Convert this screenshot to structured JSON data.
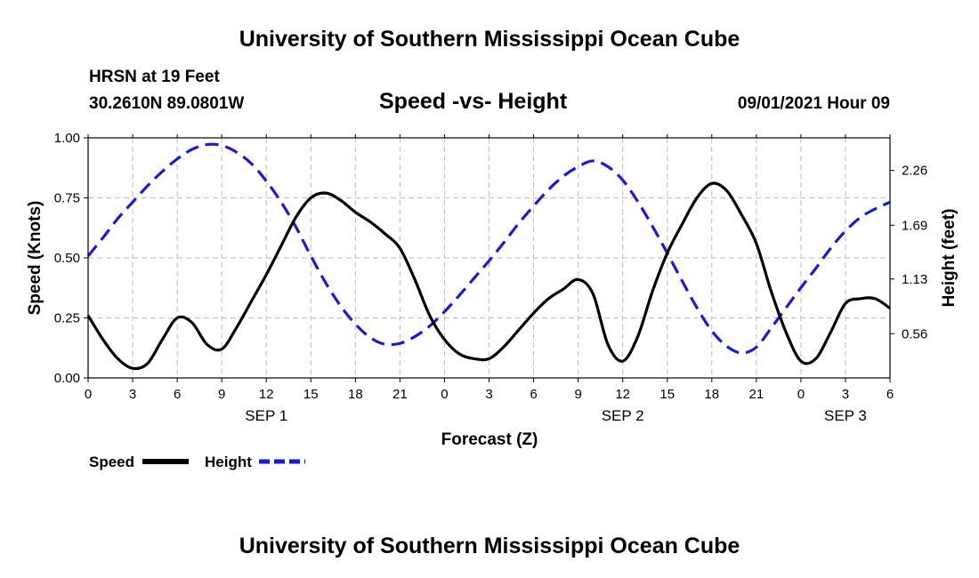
{
  "page": {
    "top_title": "University of Southern Mississippi Ocean Cube",
    "bottom_title": "University of Southern Mississippi Ocean Cube",
    "station": "HRSN at 19 Feet",
    "coords": "30.2610N  89.0801W",
    "datetime": "09/01/2021 Hour 09"
  },
  "chart_data": {
    "type": "line",
    "title": "Speed -vs- Height",
    "xlabel": "Forecast (Z)",
    "ylabel": "Speed (Knots)",
    "y2label": "Height (feet)",
    "x_range_hours": [
      0,
      54
    ],
    "x_ticks": [
      {
        "hour": 0,
        "label": "0"
      },
      {
        "hour": 3,
        "label": "3"
      },
      {
        "hour": 6,
        "label": "6"
      },
      {
        "hour": 9,
        "label": "9"
      },
      {
        "hour": 12,
        "label": "12"
      },
      {
        "hour": 15,
        "label": "15"
      },
      {
        "hour": 18,
        "label": "18"
      },
      {
        "hour": 21,
        "label": "21"
      },
      {
        "hour": 24,
        "label": "0"
      },
      {
        "hour": 27,
        "label": "3"
      },
      {
        "hour": 30,
        "label": "6"
      },
      {
        "hour": 33,
        "label": "9"
      },
      {
        "hour": 36,
        "label": "12"
      },
      {
        "hour": 39,
        "label": "15"
      },
      {
        "hour": 42,
        "label": "18"
      },
      {
        "hour": 45,
        "label": "21"
      },
      {
        "hour": 48,
        "label": "0"
      },
      {
        "hour": 51,
        "label": "3"
      },
      {
        "hour": 54,
        "label": "6"
      }
    ],
    "day_labels": [
      {
        "hour": 12,
        "label": "SEP 1"
      },
      {
        "hour": 36,
        "label": "SEP 2"
      },
      {
        "hour": 51,
        "label": "SEP 3"
      }
    ],
    "ylim": [
      0,
      1
    ],
    "y_ticks": [
      "0.00",
      "0.25",
      "0.50",
      "0.75",
      "1.00"
    ],
    "y2lim": [
      0.1,
      2.6
    ],
    "y2_ticks": [
      "0.56",
      "1.13",
      "1.69",
      "2.26"
    ],
    "grid": true,
    "legend": {
      "position": "bottom-left"
    },
    "series": [
      {
        "name": "Speed",
        "axis": "left",
        "color": "#000000",
        "style": "solid",
        "points": [
          [
            0,
            0.26
          ],
          [
            1,
            0.16
          ],
          [
            2,
            0.08
          ],
          [
            3,
            0.04
          ],
          [
            4,
            0.06
          ],
          [
            5,
            0.16
          ],
          [
            6,
            0.25
          ],
          [
            7,
            0.23
          ],
          [
            8,
            0.14
          ],
          [
            9,
            0.12
          ],
          [
            10,
            0.21
          ],
          [
            11,
            0.32
          ],
          [
            12,
            0.43
          ],
          [
            13,
            0.55
          ],
          [
            14,
            0.67
          ],
          [
            15,
            0.75
          ],
          [
            16,
            0.77
          ],
          [
            17,
            0.74
          ],
          [
            18,
            0.69
          ],
          [
            19,
            0.65
          ],
          [
            20,
            0.6
          ],
          [
            21,
            0.54
          ],
          [
            22,
            0.41
          ],
          [
            23,
            0.26
          ],
          [
            24,
            0.16
          ],
          [
            25,
            0.1
          ],
          [
            26,
            0.08
          ],
          [
            27,
            0.08
          ],
          [
            28,
            0.13
          ],
          [
            29,
            0.2
          ],
          [
            30,
            0.27
          ],
          [
            31,
            0.33
          ],
          [
            32,
            0.37
          ],
          [
            33,
            0.41
          ],
          [
            34,
            0.35
          ],
          [
            35,
            0.14
          ],
          [
            36,
            0.07
          ],
          [
            37,
            0.17
          ],
          [
            38,
            0.36
          ],
          [
            39,
            0.52
          ],
          [
            40,
            0.64
          ],
          [
            41,
            0.75
          ],
          [
            42,
            0.81
          ],
          [
            43,
            0.78
          ],
          [
            44,
            0.68
          ],
          [
            45,
            0.56
          ],
          [
            46,
            0.36
          ],
          [
            47,
            0.19
          ],
          [
            48,
            0.07
          ],
          [
            49,
            0.08
          ],
          [
            50,
            0.19
          ],
          [
            51,
            0.31
          ],
          [
            52,
            0.33
          ],
          [
            53,
            0.33
          ],
          [
            54,
            0.29
          ]
        ]
      },
      {
        "name": "Height",
        "axis": "right",
        "color": "#1a1ad6",
        "style": "dashed",
        "points": [
          [
            0,
            1.37
          ],
          [
            1,
            1.56
          ],
          [
            2,
            1.76
          ],
          [
            3,
            1.93
          ],
          [
            4,
            2.1
          ],
          [
            5,
            2.25
          ],
          [
            6,
            2.38
          ],
          [
            7,
            2.48
          ],
          [
            8,
            2.53
          ],
          [
            9,
            2.52
          ],
          [
            10,
            2.45
          ],
          [
            11,
            2.33
          ],
          [
            12,
            2.15
          ],
          [
            13,
            1.93
          ],
          [
            14,
            1.67
          ],
          [
            15,
            1.37
          ],
          [
            16,
            1.09
          ],
          [
            17,
            0.85
          ],
          [
            18,
            0.66
          ],
          [
            19,
            0.52
          ],
          [
            20,
            0.45
          ],
          [
            21,
            0.46
          ],
          [
            22,
            0.53
          ],
          [
            23,
            0.64
          ],
          [
            24,
            0.79
          ],
          [
            25,
            0.96
          ],
          [
            26,
            1.14
          ],
          [
            27,
            1.32
          ],
          [
            28,
            1.51
          ],
          [
            29,
            1.71
          ],
          [
            30,
            1.89
          ],
          [
            31,
            2.06
          ],
          [
            32,
            2.2
          ],
          [
            33,
            2.3
          ],
          [
            34,
            2.36
          ],
          [
            35,
            2.3
          ],
          [
            36,
            2.16
          ],
          [
            37,
            1.94
          ],
          [
            38,
            1.68
          ],
          [
            39,
            1.4
          ],
          [
            40,
            1.11
          ],
          [
            41,
            0.83
          ],
          [
            42,
            0.59
          ],
          [
            43,
            0.43
          ],
          [
            44,
            0.36
          ],
          [
            45,
            0.42
          ],
          [
            46,
            0.62
          ],
          [
            47,
            0.83
          ],
          [
            48,
            1.04
          ],
          [
            49,
            1.24
          ],
          [
            50,
            1.45
          ],
          [
            51,
            1.63
          ],
          [
            52,
            1.77
          ],
          [
            53,
            1.86
          ],
          [
            54,
            1.93
          ]
        ]
      }
    ]
  }
}
